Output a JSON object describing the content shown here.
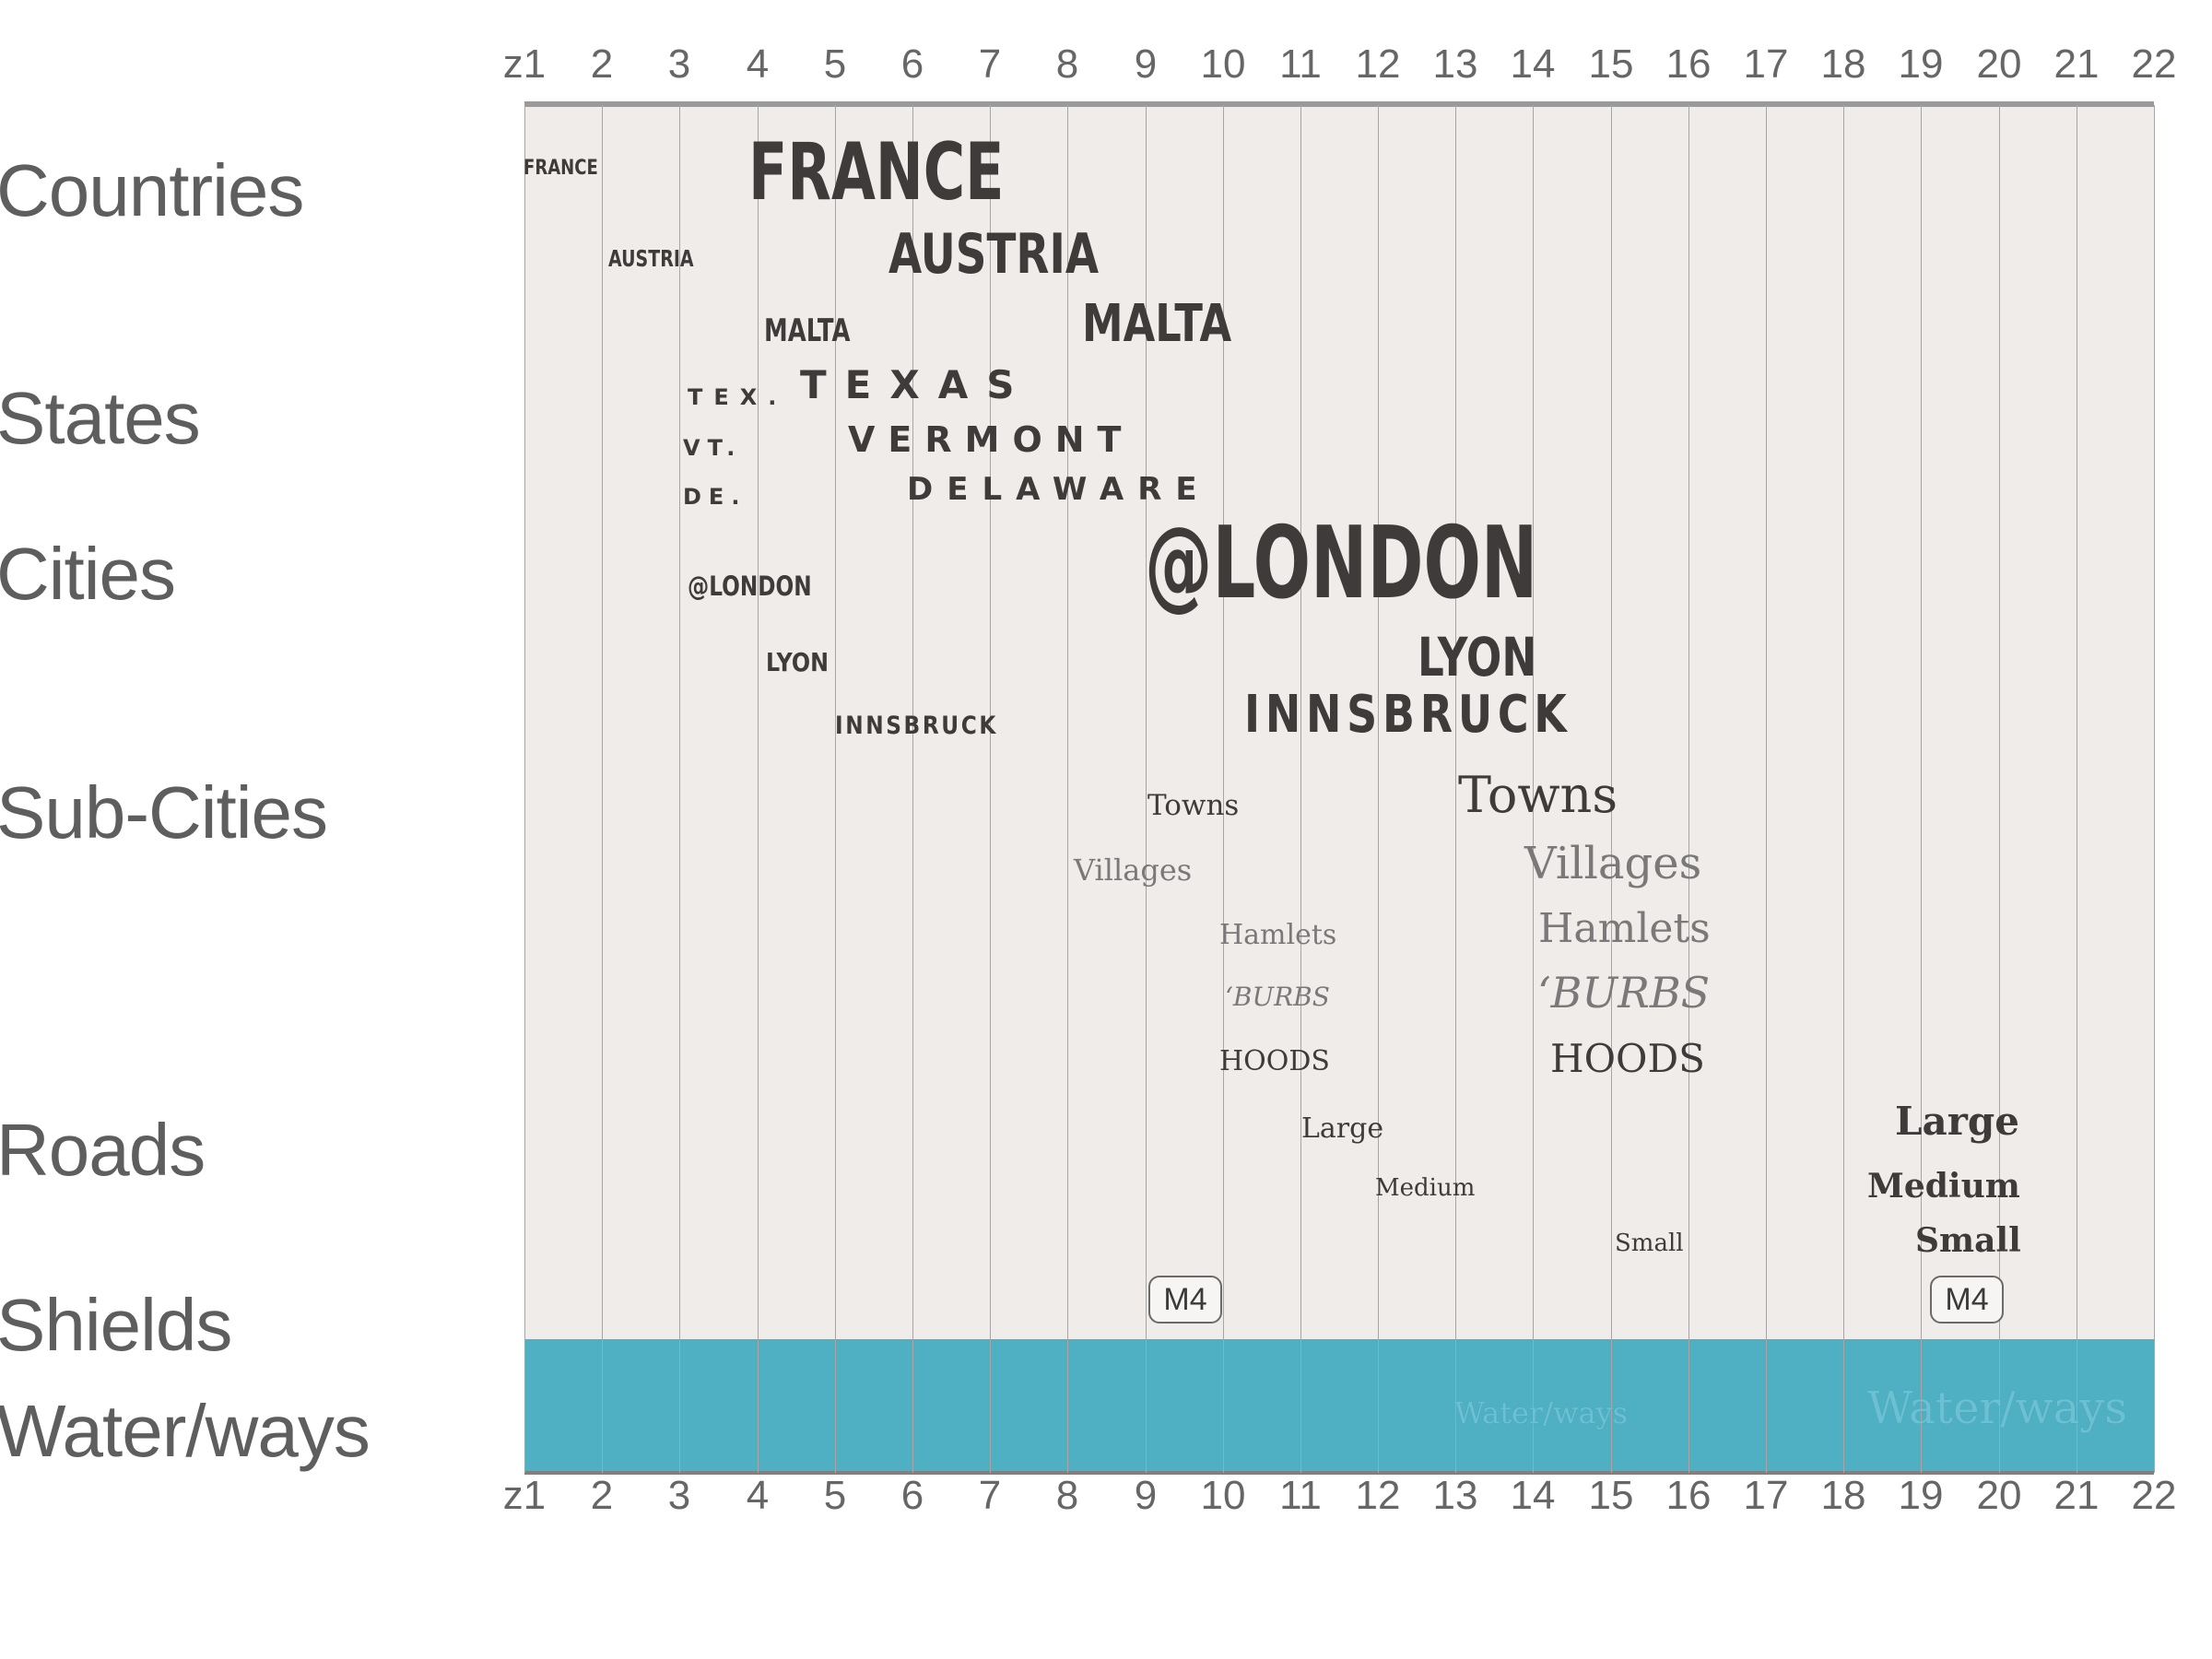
{
  "zoom_levels": [
    "z1",
    "2",
    "3",
    "4",
    "5",
    "6",
    "7",
    "8",
    "9",
    "10",
    "11",
    "12",
    "13",
    "14",
    "15",
    "16",
    "17",
    "18",
    "19",
    "20",
    "21",
    "22"
  ],
  "categories": {
    "countries": "Countries",
    "states": "States",
    "cities": "Cities",
    "sub_cities": "Sub-Cities",
    "roads": "Roads",
    "shields": "Shields",
    "waterways": "Water/ways"
  },
  "labels": {
    "france_small": "FRANCE",
    "france_large": "FRANCE",
    "austria_small": "AUSTRIA",
    "austria_large": "AUSTRIA",
    "malta_small": "MALTA",
    "malta_large": "MALTA",
    "texas_small": "TEX.",
    "texas_large": "TEXAS",
    "vermont_small": "VT.",
    "vermont_large": "VERMONT",
    "delaware_small": "DE.",
    "delaware_large": "DELAWARE",
    "london_small": "@LONDON",
    "london_large": "@LONDON",
    "lyon_small": "LYON",
    "lyon_large": "LYON",
    "innsbruck_small": "INNSBRUCK",
    "innsbruck_large": "INNSBRUCK",
    "towns_small": "Towns",
    "towns_large": "Towns",
    "villages_small": "Villages",
    "villages_large": "Villages",
    "hamlets_small": "Hamlets",
    "hamlets_large": "Hamlets",
    "burbs_small": "‘BURBS",
    "burbs_large": "‘BURBS",
    "hoods_small": "HOODS",
    "hoods_large": "HOODS",
    "large_small": "Large",
    "large_large": "Large",
    "medium_small": "Medium",
    "medium_large": "Medium",
    "small_small": "Small",
    "small_large": "Small",
    "shield_small": "M4",
    "shield_large": "M4",
    "water_small": "Water/ways",
    "water_large": "Water/ways"
  },
  "colors": {
    "panel_bg": "#f0ecea",
    "water": "#4fb0c4",
    "label_dark": "#3e3b3a",
    "label_light": "#7a7878"
  }
}
